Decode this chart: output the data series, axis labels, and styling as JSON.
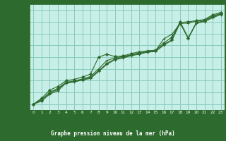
{
  "title": "Graphe pression niveau de la mer (hPa)",
  "bg_color": "#c8eee8",
  "plot_bg": "#c8eee8",
  "footer_bg": "#2d6a2d",
  "footer_text_color": "#ffffff",
  "grid_color": "#88ccbb",
  "line_color": "#2d6a2d",
  "xlim": [
    -0.5,
    23.5
  ],
  "ylim": [
    1007.5,
    1016.5
  ],
  "yticks": [
    1008,
    1009,
    1010,
    1011,
    1012,
    1013,
    1014,
    1015,
    1016
  ],
  "xticks": [
    0,
    1,
    2,
    3,
    4,
    5,
    6,
    7,
    8,
    9,
    10,
    11,
    12,
    13,
    14,
    15,
    16,
    17,
    18,
    19,
    20,
    21,
    22,
    23
  ],
  "series": [
    [
      1008.0,
      1008.5,
      1009.2,
      1009.5,
      1010.0,
      1010.1,
      1010.3,
      1010.55,
      1012.0,
      1012.25,
      1012.05,
      1012.1,
      1012.3,
      1012.45,
      1012.5,
      1012.6,
      1013.2,
      1013.7,
      1014.95,
      1015.0,
      1015.1,
      1015.2,
      1015.6,
      1015.8
    ],
    [
      1008.0,
      1008.4,
      1009.0,
      1009.35,
      1009.85,
      1009.95,
      1010.15,
      1010.35,
      1011.0,
      1011.7,
      1011.95,
      1012.05,
      1012.2,
      1012.35,
      1012.55,
      1012.55,
      1013.55,
      1013.95,
      1014.85,
      1014.9,
      1015.05,
      1015.15,
      1015.5,
      1015.72
    ],
    [
      1008.0,
      1008.35,
      1008.95,
      1009.25,
      1009.85,
      1009.95,
      1010.1,
      1010.25,
      1010.85,
      1011.45,
      1011.85,
      1011.98,
      1012.18,
      1012.3,
      1012.48,
      1012.52,
      1013.08,
      1013.48,
      1015.02,
      1013.65,
      1014.95,
      1015.08,
      1015.42,
      1015.68
    ],
    [
      1008.0,
      1008.25,
      1008.85,
      1009.15,
      1009.78,
      1009.88,
      1010.05,
      1010.18,
      1010.78,
      1011.38,
      1011.78,
      1011.92,
      1012.12,
      1012.25,
      1012.42,
      1012.48,
      1013.02,
      1013.42,
      1014.88,
      1013.58,
      1014.88,
      1015.02,
      1015.35,
      1015.62
    ]
  ]
}
